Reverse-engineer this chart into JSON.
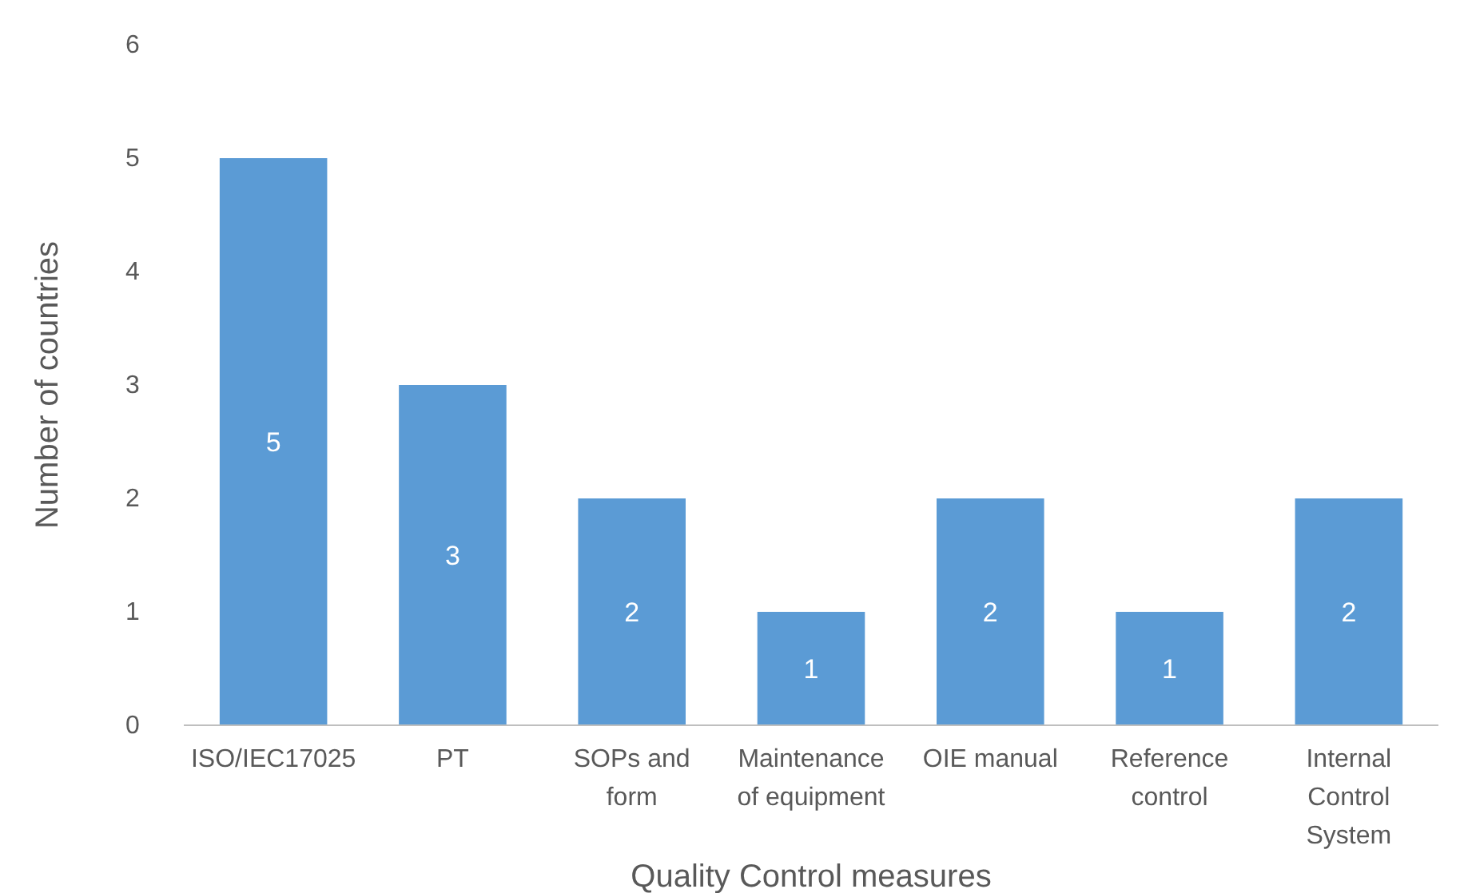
{
  "chart_data": {
    "type": "bar",
    "xlabel": "Quality Control measures",
    "ylabel": "Number of countries",
    "categories": [
      "ISO/IEC17025",
      "PT",
      "SOPs and form",
      "Maintenance of equipment",
      "OIE manual",
      "Reference control",
      "Internal Control System"
    ],
    "values": [
      5,
      3,
      2,
      1,
      2,
      1,
      2
    ],
    "color": "#5b9bd5",
    "ylim": [
      0,
      6
    ],
    "yticks": [
      0,
      1,
      2,
      3,
      4,
      5,
      6
    ],
    "grid": false,
    "data_labels": true
  }
}
